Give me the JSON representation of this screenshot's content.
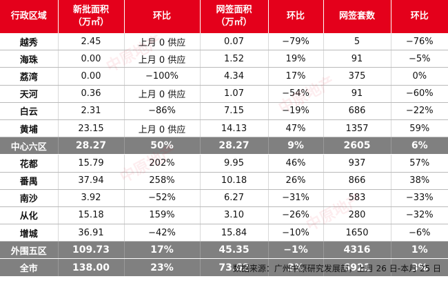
{
  "table": {
    "headers": [
      "行政区域",
      "新批面积\n（万㎡）",
      "环比",
      "网签面积\n（万㎡）",
      "环比",
      "网签套数",
      "环比"
    ],
    "rows": [
      {
        "district": "越秀",
        "new_area": "2.45",
        "new_mom": "上月 0 供应",
        "sign_area": "0.07",
        "sign_mom": "−79%",
        "units": "5",
        "units_mom": "−76%"
      },
      {
        "district": "海珠",
        "new_area": "0.00",
        "new_mom": "上月 0 供应",
        "sign_area": "1.52",
        "sign_mom": "19%",
        "units": "91",
        "units_mom": "−5%"
      },
      {
        "district": "荔湾",
        "new_area": "0.00",
        "new_mom": "−100%",
        "sign_area": "4.34",
        "sign_mom": "17%",
        "units": "375",
        "units_mom": "0%"
      },
      {
        "district": "天河",
        "new_area": "0.36",
        "new_mom": "上月 0 供应",
        "sign_area": "1.07",
        "sign_mom": "−54%",
        "units": "91",
        "units_mom": "−60%"
      },
      {
        "district": "白云",
        "new_area": "2.31",
        "new_mom": "−86%",
        "sign_area": "7.15",
        "sign_mom": "−19%",
        "units": "686",
        "units_mom": "−22%"
      },
      {
        "district": "黄埔",
        "new_area": "23.15",
        "new_mom": "上月 0 供应",
        "sign_area": "14.13",
        "sign_mom": "47%",
        "units": "1357",
        "units_mom": "59%"
      },
      {
        "district": "中心六区",
        "new_area": "28.27",
        "new_mom": "50%",
        "sign_area": "28.27",
        "sign_mom": "9%",
        "units": "2605",
        "units_mom": "6%",
        "summary": true
      },
      {
        "district": "花都",
        "new_area": "15.79",
        "new_mom": "202%",
        "sign_area": "9.95",
        "sign_mom": "46%",
        "units": "937",
        "units_mom": "57%"
      },
      {
        "district": "番禺",
        "new_area": "37.94",
        "new_mom": "258%",
        "sign_area": "10.18",
        "sign_mom": "26%",
        "units": "866",
        "units_mom": "38%"
      },
      {
        "district": "南沙",
        "new_area": "3.92",
        "new_mom": "−52%",
        "sign_area": "6.27",
        "sign_mom": "−31%",
        "units": "583",
        "units_mom": "−33%"
      },
      {
        "district": "从化",
        "new_area": "15.18",
        "new_mom": "159%",
        "sign_area": "3.10",
        "sign_mom": "−26%",
        "units": "280",
        "units_mom": "−32%"
      },
      {
        "district": "增城",
        "new_area": "36.91",
        "new_mom": "−42%",
        "sign_area": "15.84",
        "sign_mom": "−10%",
        "units": "1650",
        "units_mom": "−6%"
      },
      {
        "district": "外围五区",
        "new_area": "109.73",
        "new_mom": "17%",
        "sign_area": "45.35",
        "sign_mom": "−1%",
        "units": "4316",
        "units_mom": "1%",
        "summary": true
      },
      {
        "district": "全市",
        "new_area": "138.00",
        "new_mom": "23%",
        "sign_area": "73.62",
        "sign_mom": "3%",
        "units": "6921",
        "units_mom": "3%",
        "summary": true
      }
    ]
  },
  "source_note": "数据来源：广州中原研究发展部，上月 26 日-本月 25 日",
  "watermark_text": "中原地产",
  "colors": {
    "header_bg": "#e4001b",
    "summary_bg": "#808080"
  }
}
